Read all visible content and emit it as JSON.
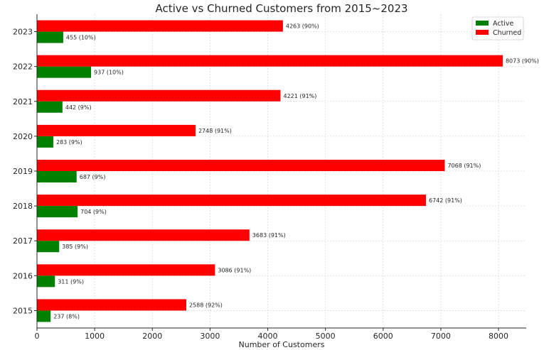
{
  "chart_data": {
    "type": "bar",
    "orientation": "horizontal",
    "title": "Active vs Churned Customers from 2015~2023",
    "xlabel": "Number of Customers",
    "ylabel": "",
    "categories": [
      "2015",
      "2016",
      "2017",
      "2018",
      "2019",
      "2020",
      "2021",
      "2022",
      "2023"
    ],
    "series": [
      {
        "name": "Active",
        "color": "#008000",
        "values": [
          237,
          311,
          385,
          704,
          687,
          283,
          442,
          937,
          455
        ],
        "labels": [
          "237 (8%)",
          "311 (9%)",
          "385 (9%)",
          "704 (9%)",
          "687 (9%)",
          "283 (9%)",
          "442 (9%)",
          "937 (10%)",
          "455 (10%)"
        ]
      },
      {
        "name": "Churned",
        "color": "#ff0000",
        "values": [
          2588,
          3086,
          3683,
          6742,
          7068,
          2748,
          4221,
          8073,
          4263
        ],
        "labels": [
          "2588 (92%)",
          "3086 (91%)",
          "3683 (91%)",
          "6742 (91%)",
          "7068 (91%)",
          "2748 (91%)",
          "4221 (91%)",
          "8073 (90%)",
          "4263 (90%)"
        ]
      }
    ],
    "xticks": [
      0,
      1000,
      2000,
      3000,
      4000,
      5000,
      6000,
      7000,
      8000
    ],
    "xlim": [
      0,
      8480
    ],
    "grid": true,
    "legend_position": "top-right"
  }
}
